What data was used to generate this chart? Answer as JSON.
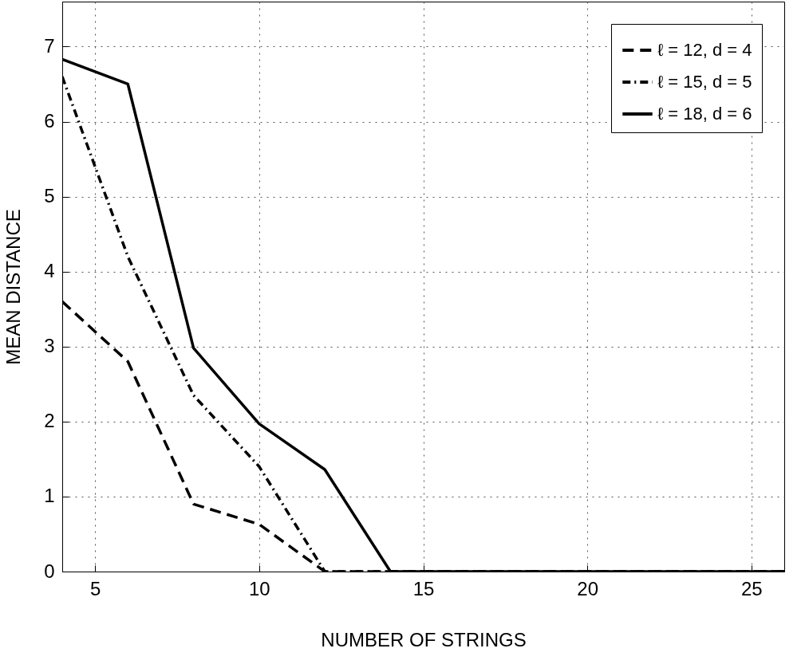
{
  "chart_data": {
    "type": "line",
    "xlabel": "NUMBER OF STRINGS",
    "ylabel": "MEAN DISTANCE",
    "x": [
      4,
      6,
      8,
      10,
      12,
      14,
      16,
      18,
      20,
      22,
      24,
      26
    ],
    "series": [
      {
        "name": "ℓ = 12, d = 4",
        "color": "#000000",
        "line_style": "dashed",
        "values": [
          3.6,
          2.8,
          0.9,
          0.63,
          0,
          0,
          0,
          0,
          0,
          0,
          0,
          0
        ]
      },
      {
        "name": "ℓ = 15, d = 5",
        "color": "#000000",
        "line_style": "dashdot",
        "values": [
          6.6,
          4.2,
          2.35,
          1.4,
          0,
          0,
          0,
          0,
          0,
          0,
          0,
          0
        ]
      },
      {
        "name": "ℓ = 18, d = 6",
        "color": "#000000",
        "line_style": "solid",
        "values": [
          6.83,
          6.5,
          2.98,
          1.97,
          1.36,
          0,
          0,
          0,
          0,
          0,
          0,
          0
        ]
      }
    ],
    "xlim": [
      4,
      26
    ],
    "ylim": [
      0,
      7.6
    ],
    "xticks": [
      5,
      10,
      15,
      20,
      25
    ],
    "yticks": [
      0,
      1,
      2,
      3,
      4,
      5,
      6,
      7
    ],
    "grid": true,
    "legend": "top right"
  }
}
